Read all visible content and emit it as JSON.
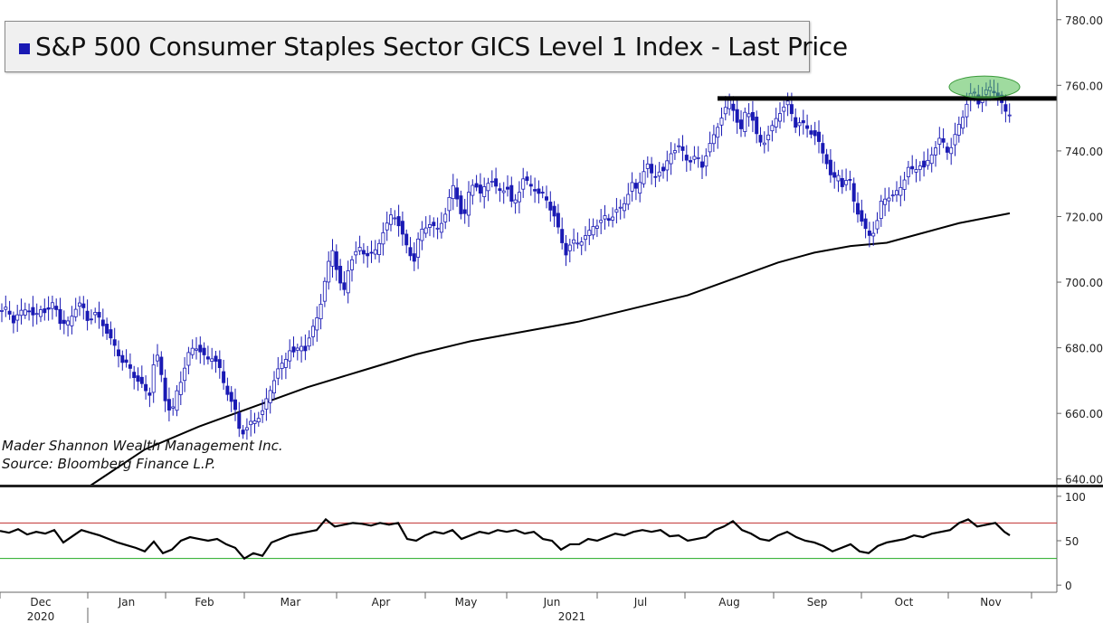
{
  "legend": {
    "label": "S&P 500 Consumer Staples Sector GICS Level 1 Index - Last Price",
    "color": "#1a1ab4"
  },
  "credits": {
    "line1": "Mader Shannon Wealth Management Inc.",
    "line2": "Source: Bloomberg Finance L.P."
  },
  "chart_data": [
    {
      "type": "candlestick",
      "series_name": "S&P 500 Consumer Staples Sector GICS Level 1 Index - Last Price",
      "y_ticks": [
        "640.00",
        "660.00",
        "680.00",
        "700.00",
        "720.00",
        "740.00",
        "760.00",
        "780.00"
      ],
      "ylim": [
        638,
        786
      ],
      "x_months": [
        {
          "label": "Dec",
          "year": "2020"
        },
        {
          "label": "Jan",
          "year": "2021"
        },
        {
          "label": "Feb",
          "year": ""
        },
        {
          "label": "Mar",
          "year": ""
        },
        {
          "label": "Apr",
          "year": ""
        },
        {
          "label": "May",
          "year": ""
        },
        {
          "label": "Jun",
          "year": ""
        },
        {
          "label": "Jul",
          "year": ""
        },
        {
          "label": "Aug",
          "year": ""
        },
        {
          "label": "Sep",
          "year": ""
        },
        {
          "label": "Oct",
          "year": ""
        },
        {
          "label": "Nov",
          "year": ""
        }
      ],
      "close_path": [
        [
          0,
          690
        ],
        [
          8,
          692
        ],
        [
          15,
          688
        ],
        [
          22,
          691
        ],
        [
          30,
          693
        ],
        [
          38,
          689
        ],
        [
          45,
          692
        ],
        [
          52,
          690
        ],
        [
          60,
          694
        ],
        [
          68,
          686
        ],
        [
          75,
          688
        ],
        [
          82,
          692
        ],
        [
          90,
          694
        ],
        [
          98,
          688
        ],
        [
          105,
          690
        ],
        [
          112,
          688
        ],
        [
          120,
          683
        ],
        [
          128,
          680
        ],
        [
          135,
          676
        ],
        [
          142,
          675
        ],
        [
          150,
          671
        ],
        [
          158,
          668
        ],
        [
          165,
          665
        ],
        [
          172,
          679
        ],
        [
          178,
          672
        ],
        [
          184,
          662
        ],
        [
          190,
          660
        ],
        [
          196,
          668
        ],
        [
          202,
          672
        ],
        [
          208,
          678
        ],
        [
          215,
          681
        ],
        [
          222,
          678
        ],
        [
          228,
          676
        ],
        [
          235,
          677
        ],
        [
          242,
          674
        ],
        [
          248,
          669
        ],
        [
          254,
          665
        ],
        [
          260,
          661
        ],
        [
          266,
          654
        ],
        [
          272,
          655
        ],
        [
          278,
          657
        ],
        [
          284,
          658
        ],
        [
          290,
          660
        ],
        [
          296,
          665
        ],
        [
          302,
          670
        ],
        [
          308,
          674
        ],
        [
          314,
          676
        ],
        [
          320,
          680
        ],
        [
          326,
          678
        ],
        [
          332,
          681
        ],
        [
          338,
          679
        ],
        [
          344,
          684
        ],
        [
          350,
          689
        ],
        [
          356,
          695
        ],
        [
          362,
          705
        ],
        [
          368,
          711
        ],
        [
          374,
          701
        ],
        [
          380,
          697
        ],
        [
          386,
          706
        ],
        [
          392,
          708
        ],
        [
          398,
          710
        ],
        [
          404,
          708
        ],
        [
          410,
          708
        ],
        [
          416,
          710
        ],
        [
          422,
          715
        ],
        [
          428,
          718
        ],
        [
          434,
          722
        ],
        [
          440,
          718
        ],
        [
          446,
          713
        ],
        [
          452,
          709
        ],
        [
          458,
          706
        ],
        [
          464,
          715
        ],
        [
          470,
          717
        ],
        [
          476,
          718
        ],
        [
          482,
          716
        ],
        [
          488,
          719
        ],
        [
          494,
          722
        ],
        [
          500,
          730
        ],
        [
          506,
          725
        ],
        [
          512,
          717
        ],
        [
          518,
          727
        ],
        [
          524,
          731
        ],
        [
          530,
          726
        ],
        [
          536,
          730
        ],
        [
          542,
          732
        ],
        [
          548,
          729
        ],
        [
          554,
          728
        ],
        [
          560,
          729
        ],
        [
          566,
          723
        ],
        [
          572,
          726
        ],
        [
          578,
          731
        ],
        [
          584,
          730
        ],
        [
          590,
          729
        ],
        [
          596,
          727
        ],
        [
          602,
          727
        ],
        [
          608,
          723
        ],
        [
          614,
          719
        ],
        [
          620,
          713
        ],
        [
          626,
          708
        ],
        [
          632,
          712
        ],
        [
          638,
          712
        ],
        [
          644,
          713
        ],
        [
          650,
          715
        ],
        [
          656,
          718
        ],
        [
          662,
          718
        ],
        [
          668,
          720
        ],
        [
          674,
          719
        ],
        [
          680,
          721
        ],
        [
          686,
          722
        ],
        [
          692,
          725
        ],
        [
          698,
          730
        ],
        [
          704,
          728
        ],
        [
          710,
          734
        ],
        [
          716,
          736
        ],
        [
          722,
          732
        ],
        [
          728,
          734
        ],
        [
          734,
          733
        ],
        [
          740,
          739
        ],
        [
          746,
          740
        ],
        [
          752,
          741
        ],
        [
          758,
          738
        ],
        [
          764,
          737
        ],
        [
          770,
          739
        ],
        [
          776,
          736
        ],
        [
          782,
          740
        ],
        [
          788,
          744
        ],
        [
          794,
          748
        ],
        [
          800,
          751
        ],
        [
          806,
          755
        ],
        [
          812,
          752
        ],
        [
          818,
          745
        ],
        [
          824,
          753
        ],
        [
          830,
          752
        ],
        [
          836,
          745
        ],
        [
          842,
          742
        ],
        [
          848,
          744
        ],
        [
          854,
          747
        ],
        [
          860,
          751
        ],
        [
          866,
          753
        ],
        [
          872,
          755
        ],
        [
          878,
          748
        ],
        [
          884,
          749
        ],
        [
          890,
          748
        ],
        [
          896,
          746
        ],
        [
          902,
          744
        ],
        [
          908,
          740
        ],
        [
          914,
          736
        ],
        [
          920,
          730
        ],
        [
          926,
          733
        ],
        [
          932,
          729
        ],
        [
          938,
          733
        ],
        [
          944,
          725
        ],
        [
          950,
          720
        ],
        [
          956,
          716
        ],
        [
          962,
          714
        ],
        [
          968,
          716
        ],
        [
          974,
          724
        ],
        [
          980,
          726
        ],
        [
          986,
          726
        ],
        [
          992,
          728
        ],
        [
          998,
          731
        ],
        [
          1004,
          735
        ],
        [
          1010,
          734
        ],
        [
          1016,
          736
        ],
        [
          1022,
          734
        ],
        [
          1028,
          738
        ],
        [
          1034,
          741
        ],
        [
          1040,
          744
        ],
        [
          1046,
          740
        ],
        [
          1052,
          742
        ],
        [
          1058,
          747
        ],
        [
          1064,
          751
        ],
        [
          1070,
          756
        ],
        [
          1076,
          758
        ],
        [
          1082,
          754
        ],
        [
          1088,
          757
        ],
        [
          1094,
          759
        ],
        [
          1100,
          758
        ],
        [
          1106,
          755
        ],
        [
          1112,
          752
        ],
        [
          1116,
          752
        ]
      ],
      "moving_average": {
        "points": [
          [
            100,
            638
          ],
          [
            160,
            649
          ],
          [
            220,
            656
          ],
          [
            280,
            662
          ],
          [
            340,
            668
          ],
          [
            400,
            673
          ],
          [
            460,
            678
          ],
          [
            520,
            682
          ],
          [
            580,
            685
          ],
          [
            640,
            688
          ],
          [
            700,
            692
          ],
          [
            760,
            696
          ],
          [
            820,
            702
          ],
          [
            860,
            706
          ],
          [
            900,
            709
          ],
          [
            940,
            711
          ],
          [
            980,
            712
          ],
          [
            1020,
            715
          ],
          [
            1060,
            718
          ],
          [
            1116,
            721
          ]
        ]
      },
      "resistance_level": 756,
      "highlight": "green ellipse around November highs near 760"
    },
    {
      "type": "line",
      "panel": "oscillator",
      "y_ticks": [
        "0",
        "50",
        "100"
      ],
      "ylim": [
        -8,
        108
      ],
      "upper_line": 70,
      "lower_line": 30,
      "upper_color": "#c03030",
      "lower_color": "#22aa22",
      "values_path": [
        [
          0,
          61
        ],
        [
          10,
          59
        ],
        [
          20,
          63
        ],
        [
          30,
          57
        ],
        [
          40,
          60
        ],
        [
          50,
          58
        ],
        [
          60,
          62
        ],
        [
          70,
          48
        ],
        [
          80,
          55
        ],
        [
          90,
          62
        ],
        [
          100,
          59
        ],
        [
          110,
          56
        ],
        [
          120,
          52
        ],
        [
          130,
          48
        ],
        [
          140,
          45
        ],
        [
          150,
          42
        ],
        [
          160,
          38
        ],
        [
          170,
          49
        ],
        [
          180,
          36
        ],
        [
          190,
          40
        ],
        [
          200,
          50
        ],
        [
          210,
          54
        ],
        [
          220,
          52
        ],
        [
          230,
          50
        ],
        [
          240,
          52
        ],
        [
          250,
          46
        ],
        [
          260,
          42
        ],
        [
          270,
          30
        ],
        [
          280,
          36
        ],
        [
          290,
          33
        ],
        [
          300,
          48
        ],
        [
          310,
          52
        ],
        [
          320,
          56
        ],
        [
          330,
          58
        ],
        [
          340,
          60
        ],
        [
          350,
          62
        ],
        [
          360,
          74
        ],
        [
          370,
          66
        ],
        [
          380,
          68
        ],
        [
          390,
          70
        ],
        [
          400,
          69
        ],
        [
          410,
          67
        ],
        [
          420,
          70
        ],
        [
          430,
          68
        ],
        [
          440,
          70
        ],
        [
          450,
          52
        ],
        [
          460,
          50
        ],
        [
          470,
          56
        ],
        [
          480,
          60
        ],
        [
          490,
          58
        ],
        [
          500,
          62
        ],
        [
          510,
          52
        ],
        [
          520,
          56
        ],
        [
          530,
          60
        ],
        [
          540,
          58
        ],
        [
          550,
          62
        ],
        [
          560,
          60
        ],
        [
          570,
          62
        ],
        [
          580,
          58
        ],
        [
          590,
          60
        ],
        [
          600,
          52
        ],
        [
          610,
          50
        ],
        [
          620,
          40
        ],
        [
          630,
          46
        ],
        [
          640,
          46
        ],
        [
          650,
          52
        ],
        [
          660,
          50
        ],
        [
          670,
          54
        ],
        [
          680,
          58
        ],
        [
          690,
          56
        ],
        [
          700,
          60
        ],
        [
          710,
          62
        ],
        [
          720,
          60
        ],
        [
          730,
          62
        ],
        [
          740,
          55
        ],
        [
          750,
          56
        ],
        [
          760,
          50
        ],
        [
          770,
          52
        ],
        [
          780,
          54
        ],
        [
          790,
          62
        ],
        [
          800,
          66
        ],
        [
          810,
          72
        ],
        [
          820,
          62
        ],
        [
          830,
          58
        ],
        [
          840,
          52
        ],
        [
          850,
          50
        ],
        [
          860,
          56
        ],
        [
          870,
          60
        ],
        [
          880,
          54
        ],
        [
          890,
          50
        ],
        [
          900,
          48
        ],
        [
          910,
          44
        ],
        [
          920,
          38
        ],
        [
          930,
          42
        ],
        [
          940,
          46
        ],
        [
          950,
          38
        ],
        [
          960,
          36
        ],
        [
          970,
          44
        ],
        [
          980,
          48
        ],
        [
          990,
          50
        ],
        [
          1000,
          52
        ],
        [
          1010,
          56
        ],
        [
          1020,
          54
        ],
        [
          1030,
          58
        ],
        [
          1040,
          60
        ],
        [
          1050,
          62
        ],
        [
          1060,
          70
        ],
        [
          1070,
          74
        ],
        [
          1080,
          66
        ],
        [
          1090,
          68
        ],
        [
          1100,
          70
        ],
        [
          1110,
          60
        ],
        [
          1116,
          56
        ]
      ]
    }
  ]
}
